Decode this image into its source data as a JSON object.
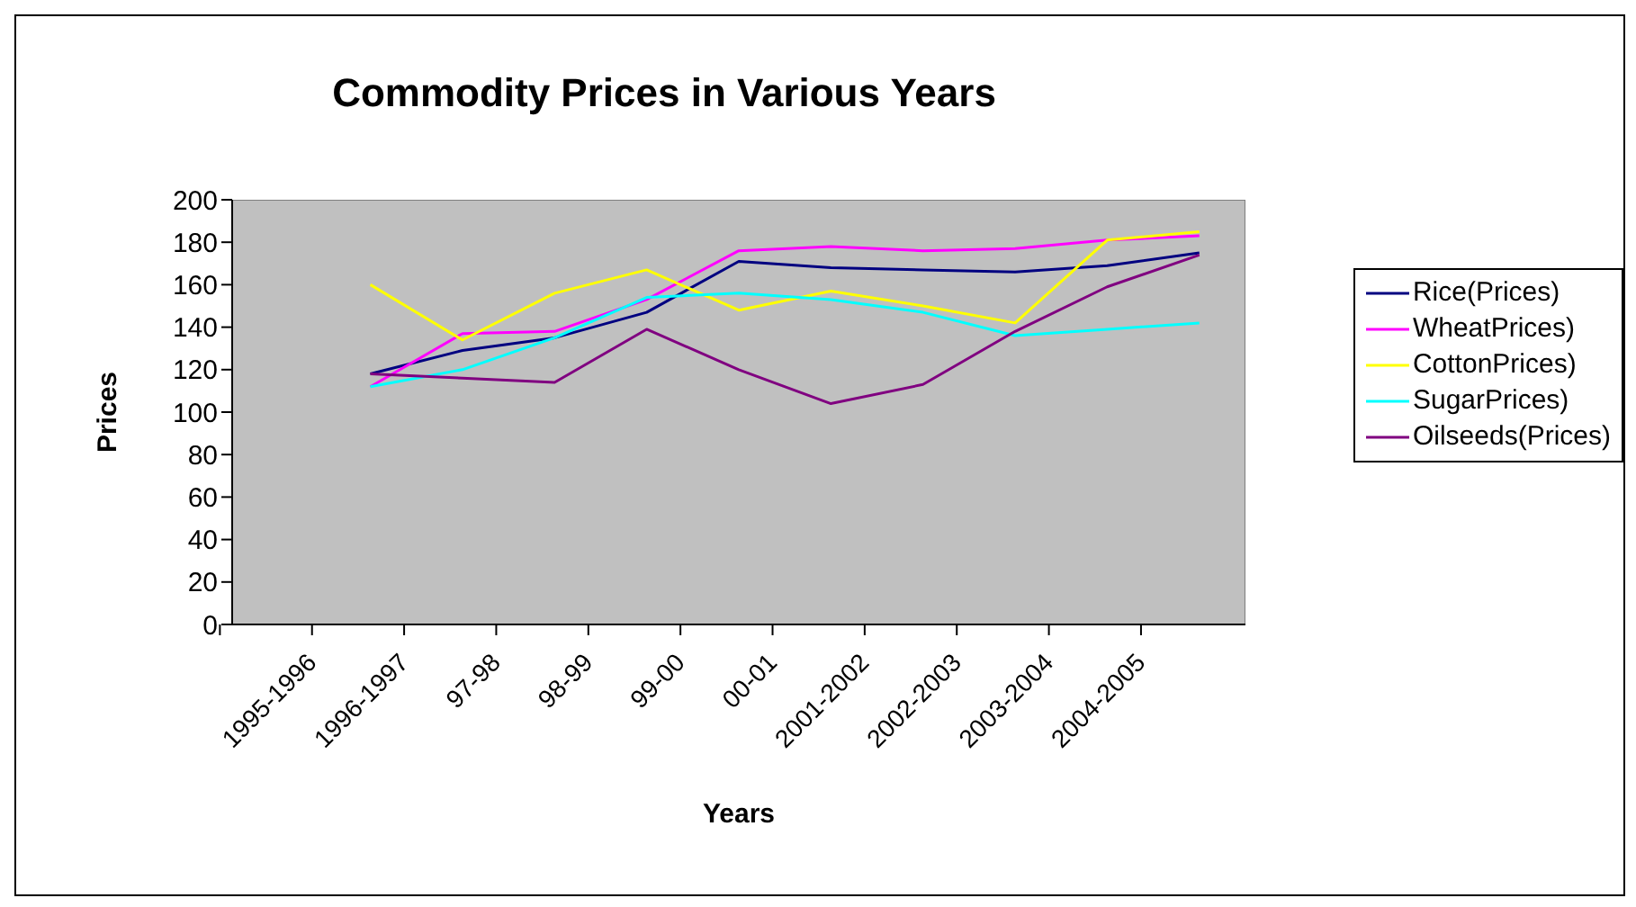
{
  "chart_data": {
    "type": "line",
    "title": "Commodity Prices in Various Years",
    "xlabel": "Years",
    "ylabel": "Prices",
    "categories": [
      "1995-1996",
      "1996-1997",
      "97-98",
      "98-99",
      "99-00",
      "00-01",
      "2001-2002",
      "2002-2003",
      "2003-2004",
      "2004-2005",
      null
    ],
    "series": [
      {
        "name": "Rice(Prices)",
        "color": "#000080",
        "values": [
          null,
          118,
          129,
          135,
          147,
          171,
          168,
          167,
          166,
          169,
          175
        ]
      },
      {
        "name": "WheatPrices)",
        "color": "#ff00ff",
        "values": [
          null,
          112,
          137,
          138,
          153,
          176,
          178,
          176,
          177,
          181,
          183
        ]
      },
      {
        "name": "CottonPrices)",
        "color": "#ffff00",
        "values": [
          null,
          160,
          134,
          156,
          167,
          148,
          157,
          150,
          142,
          181,
          185
        ]
      },
      {
        "name": "SugarPrices)",
        "color": "#00ffff",
        "values": [
          null,
          112,
          120,
          135,
          154,
          156,
          153,
          147,
          136,
          139,
          142
        ]
      },
      {
        "name": "Oilseeds(Prices)",
        "color": "#800080",
        "values": [
          null,
          118,
          116,
          114,
          139,
          120,
          104,
          113,
          138,
          159,
          174
        ]
      }
    ],
    "ylim": [
      0,
      200
    ],
    "yticks": [
      0,
      20,
      40,
      60,
      80,
      100,
      120,
      140,
      160,
      180,
      200
    ],
    "grid": false,
    "legend": "right",
    "marker": "none",
    "line_style": "solid"
  }
}
